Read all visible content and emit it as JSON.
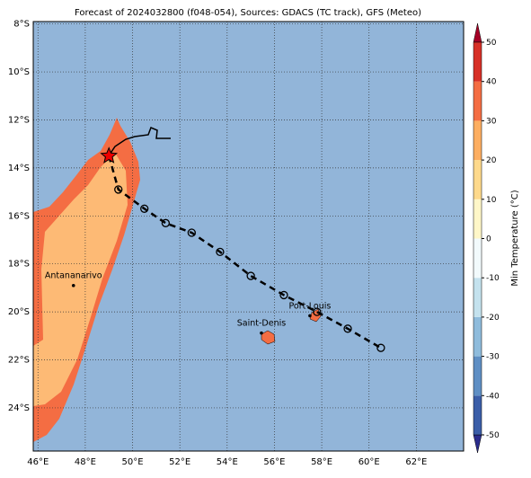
{
  "map": {
    "title": "Forecast of 2024032800 (f048-054), Sources: GDACS (TC track), GFS (Meteo)",
    "xlim": [
      45.8,
      64
    ],
    "ylim": [
      -7.9,
      -25.8
    ],
    "xticks": [
      {
        "value": 46,
        "label": "46°E"
      },
      {
        "value": 48,
        "label": "48°E"
      },
      {
        "value": 50,
        "label": "50°E"
      },
      {
        "value": 52,
        "label": "52°E"
      },
      {
        "value": 54,
        "label": "54°E"
      },
      {
        "value": 56,
        "label": "56°E"
      },
      {
        "value": 58,
        "label": "58°E"
      },
      {
        "value": 60,
        "label": "60°E"
      },
      {
        "value": 62,
        "label": "62°E"
      }
    ],
    "yticks": [
      {
        "value": -8,
        "label": "8°S"
      },
      {
        "value": -10,
        "label": "10°S"
      },
      {
        "value": -12,
        "label": "12°S"
      },
      {
        "value": -14,
        "label": "14°S"
      },
      {
        "value": -16,
        "label": "16°S"
      },
      {
        "value": -18,
        "label": "18°S"
      },
      {
        "value": -20,
        "label": "20°S"
      },
      {
        "value": -22,
        "label": "22°S"
      },
      {
        "value": -24,
        "label": "24°S"
      }
    ],
    "track": {
      "lon": [
        49.0,
        49.4,
        50.5,
        51.4,
        52.5,
        53.7,
        55.0,
        56.4,
        57.8,
        59.1,
        60.5
      ],
      "lat": [
        -13.5,
        -14.9,
        -15.7,
        -16.3,
        -16.7,
        -17.5,
        -18.5,
        -19.3,
        -20.0,
        -20.7,
        -21.5
      ]
    },
    "cities": [
      {
        "name": "Antananarivo",
        "lon": 47.5,
        "lat": -18.9
      },
      {
        "name": "Saint-Denis",
        "lon": 55.45,
        "lat": -20.88
      },
      {
        "name": "Port-Louis",
        "lon": 57.5,
        "lat": -20.16
      }
    ],
    "colorbar": {
      "label": "Min Temperature (°C)",
      "lim": [
        -50,
        50
      ],
      "ticks": [
        -50,
        -40,
        -30,
        -20,
        -10,
        0,
        10,
        20,
        30,
        40,
        50
      ],
      "colors": [
        "#2b2c8c",
        "#3b5ea8",
        "#5f8fc4",
        "#8fbcdc",
        "#c4e2ee",
        "#f2fafc",
        "#fff7c8",
        "#fed98b",
        "#fdae61",
        "#f46d43",
        "#d73027",
        "#a50026"
      ]
    }
  }
}
